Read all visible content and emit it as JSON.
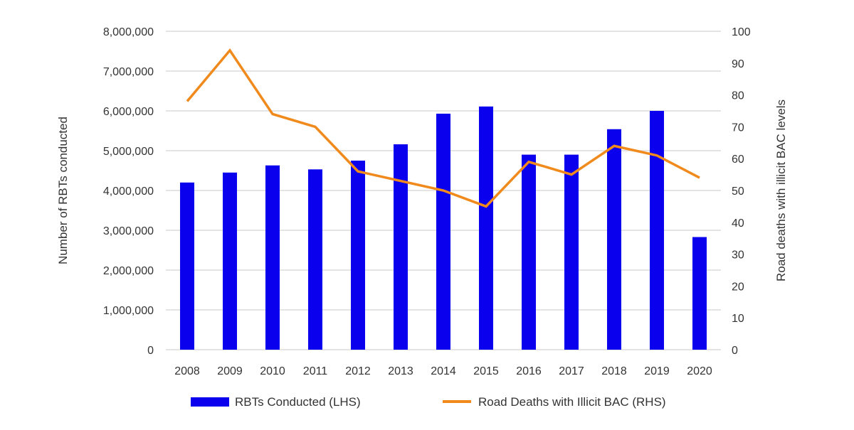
{
  "chart_data": {
    "type": "bar+line",
    "categories": [
      "2008",
      "2009",
      "2010",
      "2011",
      "2012",
      "2013",
      "2014",
      "2015",
      "2016",
      "2017",
      "2018",
      "2019",
      "2020"
    ],
    "series": [
      {
        "name": "RBTs Conducted (LHS)",
        "type": "bar",
        "axis": "left",
        "color": "#0a00ee",
        "values": [
          4200000,
          4450000,
          4630000,
          4530000,
          4750000,
          5160000,
          5930000,
          6110000,
          4900000,
          4900000,
          5540000,
          6000000,
          2830000
        ]
      },
      {
        "name": "Road Deaths with Illicit BAC (RHS)",
        "type": "line",
        "axis": "right",
        "color": "#f08a1c",
        "values": [
          78,
          94,
          74,
          70,
          56,
          53,
          50,
          45,
          59,
          55,
          64,
          61,
          54
        ]
      }
    ],
    "ylabel_left": "Number of RBTs conducted",
    "ylabel_right": "Road deaths with illicit BAC levels",
    "ylim_left": [
      0,
      8000000
    ],
    "ylim_right": [
      0,
      100
    ],
    "yticks_left": [
      "0",
      "1,000,000",
      "2,000,000",
      "3,000,000",
      "4,000,000",
      "5,000,000",
      "6,000,000",
      "7,000,000",
      "8,000,000"
    ],
    "yticks_right": [
      "0",
      "10",
      "20",
      "30",
      "40",
      "50",
      "60",
      "70",
      "80",
      "90",
      "100"
    ],
    "grid": true,
    "legend_position": "bottom"
  }
}
